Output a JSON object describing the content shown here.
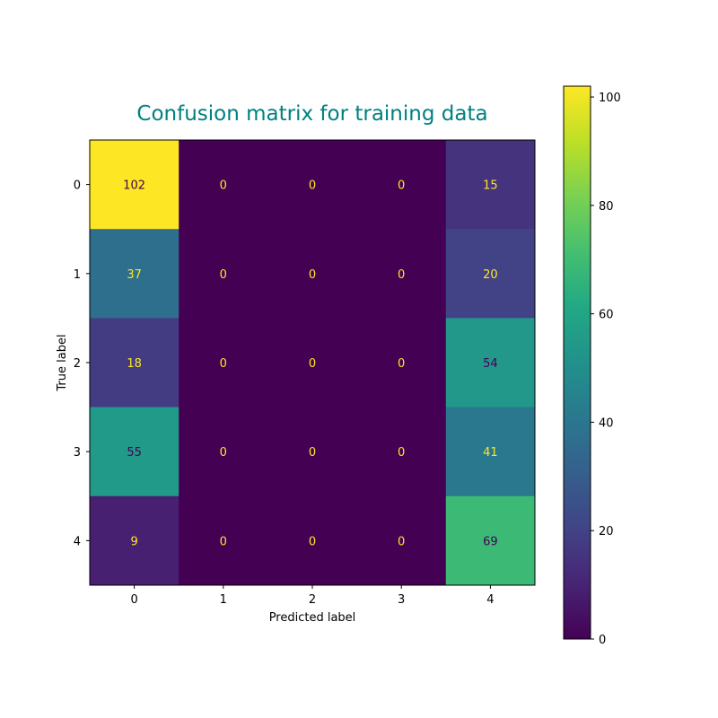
{
  "chart_data": {
    "type": "heatmap",
    "title": "Confusion matrix for training data",
    "title_color": "#008080",
    "xlabel": "Predicted label",
    "ylabel": "True label",
    "x_categories": [
      "0",
      "1",
      "2",
      "3",
      "4"
    ],
    "y_categories": [
      "0",
      "1",
      "2",
      "3",
      "4"
    ],
    "matrix": [
      [
        102,
        0,
        0,
        0,
        15
      ],
      [
        37,
        0,
        0,
        0,
        20
      ],
      [
        18,
        0,
        0,
        0,
        54
      ],
      [
        55,
        0,
        0,
        0,
        41
      ],
      [
        9,
        0,
        0,
        0,
        69
      ]
    ],
    "colormap": "viridis",
    "value_range": [
      0,
      102
    ],
    "colorbar_ticks": [
      0,
      20,
      40,
      60,
      80,
      100
    ],
    "colorbar_tick_labels": [
      "0",
      "20",
      "40",
      "60",
      "80",
      "100"
    ],
    "colorbar_placement": "right",
    "text_color_dark": "#440154",
    "text_color_light": "#fde725"
  }
}
